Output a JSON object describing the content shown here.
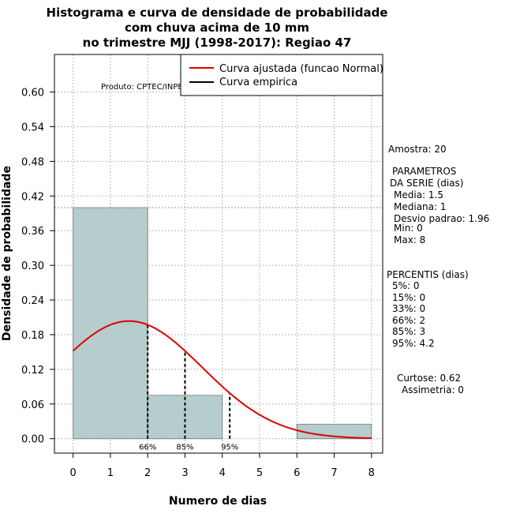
{
  "chart_data": {
    "type": "bar",
    "title_lines": [
      "Histograma e curva de densidade de probabilidade",
      "com chuva acima de 10 mm",
      "no trimestre MJJ (1998-2017): Regiao 47"
    ],
    "xlabel": "Numero de dias",
    "ylabel": "Densidade de probabilidade",
    "xlim": [
      -0.5,
      8.3
    ],
    "ylim": [
      -0.025,
      0.665
    ],
    "x_ticks": [
      0,
      1,
      2,
      3,
      4,
      5,
      6,
      7,
      8
    ],
    "y_ticks": [
      "0.00",
      "0.06",
      "0.12",
      "0.18",
      "0.24",
      "0.30",
      "0.36",
      "0.42",
      "0.48",
      "0.54",
      "0.60"
    ],
    "y_tick_values": [
      0.0,
      0.06,
      0.12,
      0.18,
      0.24,
      0.3,
      0.36,
      0.42,
      0.48,
      0.54,
      0.6
    ],
    "grid": true,
    "bins": [
      {
        "x0": 0,
        "x1": 2,
        "density": 0.4
      },
      {
        "x0": 2,
        "x1": 4,
        "density": 0.075
      },
      {
        "x0": 4,
        "x1": 6,
        "density": 0.0
      },
      {
        "x0": 6,
        "x1": 8,
        "density": 0.025
      }
    ],
    "reference_line_y": 0.4,
    "normal_curve": {
      "name": "Curva ajustada (funcao Normal)",
      "mean": 1.5,
      "sd": 1.96,
      "x_range": [
        0,
        8
      ],
      "color": "#e00000"
    },
    "empirical_curve": {
      "name": "Curva empirica",
      "color": "#000000"
    },
    "percentile_markers": [
      {
        "label": "66%",
        "x": 2
      },
      {
        "label": "85%",
        "x": 3
      },
      {
        "label": "95%",
        "x": 4.2
      }
    ],
    "legend": [
      "Curva ajustada (funcao Normal)",
      "Curva empirica"
    ],
    "legend_position": "top-right",
    "product_label": "Produto: CPTEC/INPE"
  },
  "colors": {
    "bar_fill": "#b5cdcd",
    "curve": "#e00000",
    "grid": "#bbbbbb"
  },
  "side_panel": {
    "sample": "Amostra: 20",
    "params_title_1": "PARAMETROS",
    "params_title_2": "DA SERIE (dias)",
    "params": [
      "Media: 1.5",
      "Mediana: 1",
      "Desvio padrao: 1.96",
      "Min: 0",
      "Max: 8"
    ],
    "percentis_title": "PERCENTIS (dias)",
    "percentis": [
      "5%: 0",
      "15%: 0",
      "33%: 0",
      "66%: 2",
      "85%: 3",
      "95%: 4.2"
    ],
    "curtose": "Curtose: 0.62",
    "assimetria": "Assimetria: 0"
  }
}
